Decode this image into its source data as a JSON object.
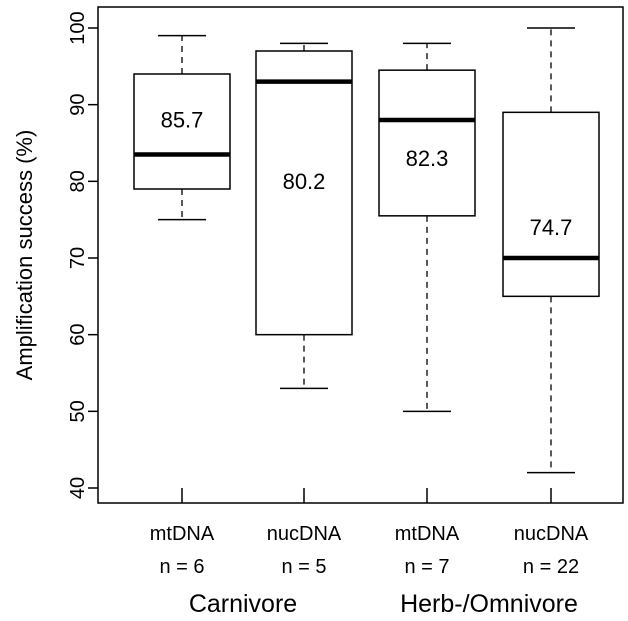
{
  "chart_data": {
    "type": "boxplot",
    "ylabel": "Amplification success (%)",
    "ylim": [
      40,
      100
    ],
    "yticks": [
      "40",
      "50",
      "60",
      "70",
      "80",
      "90",
      "100"
    ],
    "grid": false,
    "boxes": [
      {
        "label": "mtDNA",
        "n_label": "n = 6",
        "whisker_low": 75,
        "q1": 79,
        "median": 83.5,
        "q3": 94,
        "whisker_high": 99,
        "mean_label": "85.7",
        "mean_label_y": 88
      },
      {
        "label": "nucDNA",
        "n_label": "n = 5",
        "whisker_low": 53,
        "q1": 60,
        "median": 93,
        "q3": 97,
        "whisker_high": 98,
        "mean_label": "80.2",
        "mean_label_y": 80
      },
      {
        "label": "mtDNA",
        "n_label": "n = 7",
        "whisker_low": 50,
        "q1": 75.5,
        "median": 88,
        "q3": 94.5,
        "whisker_high": 98,
        "mean_label": "82.3",
        "mean_label_y": 83
      },
      {
        "label": "nucDNA",
        "n_label": "n = 22",
        "whisker_low": 42,
        "q1": 65,
        "median": 70,
        "q3": 89,
        "whisker_high": 100,
        "mean_label": "74.7",
        "mean_label_y": 74
      }
    ],
    "groups": [
      {
        "label": "Carnivore",
        "boxes": [
          0,
          1
        ]
      },
      {
        "label": "Herb-/Omnivore",
        "boxes": [
          2,
          3
        ]
      }
    ]
  }
}
